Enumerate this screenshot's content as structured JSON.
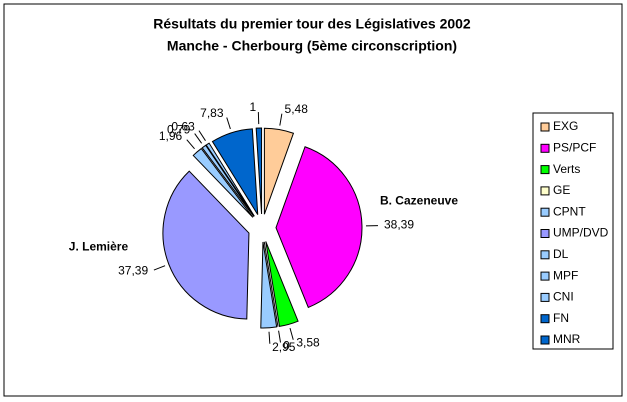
{
  "chart_data": {
    "type": "pie",
    "title": "Résultats du premier tour des Législatives 2002",
    "subtitle": "Manche - Cherbourg (5ème circonscription)",
    "categories": [
      "EXG",
      "PS/PCF",
      "Verts",
      "GE",
      "CPNT",
      "UMP/DVD",
      "DL",
      "MPF",
      "CNI",
      "FN",
      "MNR"
    ],
    "values": [
      5.48,
      38.39,
      3.58,
      0,
      2.95,
      37.39,
      1.96,
      0.79,
      0.63,
      7.83,
      1
    ],
    "value_labels": [
      "5,48",
      "38,39",
      "3,58",
      "0",
      "2,95",
      "37,39",
      "1,96",
      "0,79",
      "0,63",
      "7,83",
      "1"
    ],
    "colors": [
      "#FFCC99",
      "#FF00FF",
      "#00FF00",
      "#FFFFCC",
      "#99CCFF",
      "#9999FF",
      "#99CCFF",
      "#99CCFF",
      "#99CCFF",
      "#0066CC",
      "#0066CC"
    ],
    "annotations": [
      {
        "category": "PS/PCF",
        "text": "B. Cazeneuve"
      },
      {
        "category": "UMP/DVD",
        "text": "J. Lemière"
      }
    ],
    "legend": "right"
  }
}
